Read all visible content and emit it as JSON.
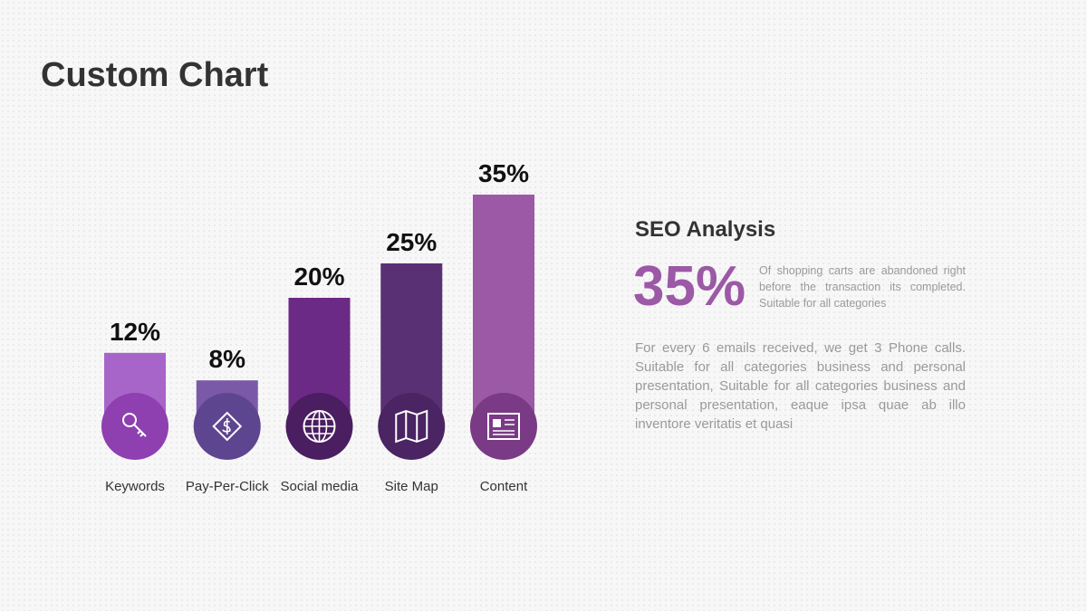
{
  "chart_data": {
    "type": "bar",
    "title": "Custom Chart",
    "categories": [
      "Keywords",
      "Pay-Per-Click",
      "Social media",
      "Site Map",
      "Content"
    ],
    "values": [
      12,
      8,
      20,
      25,
      35
    ],
    "value_labels": [
      "12%",
      "8%",
      "20%",
      "25%",
      "35%"
    ],
    "colors": [
      "#a865c9",
      "#7a5aa8",
      "#6b2a85",
      "#5a3075",
      "#9b59a6"
    ],
    "circle_colors": [
      "#8e3fb0",
      "#5e4590",
      "#4a1e60",
      "#4a2463",
      "#7a3a85"
    ]
  },
  "panel": {
    "title": "SEO Analysis",
    "big_stat": "35%",
    "stat_text": "Of shopping carts are abandoned right before the transaction its completed. Suitable for all categories",
    "paragraph": "For every 6 emails received, we get 3 Phone calls. Suitable for all categories business and personal presentation, Suitable for all categories business and personal presentation, eaque ipsa quae ab illo inventore veritatis et quasi"
  }
}
